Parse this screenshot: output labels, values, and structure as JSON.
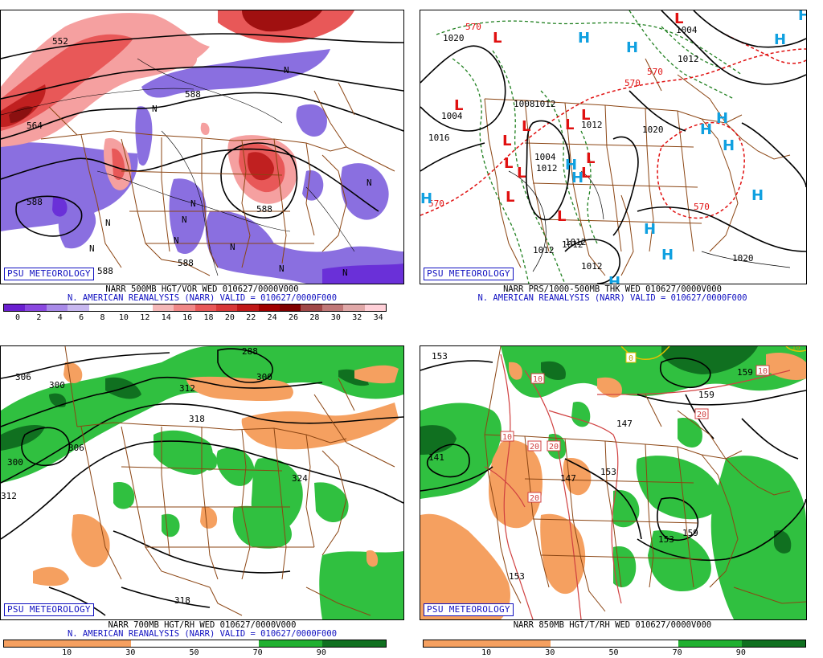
{
  "panels": {
    "p1": {
      "logo": "PSU METEOROLOGY",
      "line1": "NARR 500MB HGT/VOR WED 010627/0000V000",
      "line2": "N. AMERICAN REANALYSIS (NARR) VALID = 010627/0000F000",
      "colorbar_ticks": [
        "0",
        "2",
        "4",
        "6",
        "8",
        "10",
        "12",
        "14",
        "16",
        "18",
        "20",
        "22",
        "24",
        "26",
        "28",
        "30",
        "32",
        "34"
      ],
      "colorbar_colors": [
        "#6a1fd0",
        "#8a48e0",
        "#a88ae8",
        "#c8b8f0",
        "#ffffff",
        "#ffffff",
        "#ffffff",
        "#f5b8b8",
        "#f08888",
        "#e85858",
        "#d83838",
        "#c01818",
        "#a00000",
        "#800000",
        "#a04848",
        "#c07878",
        "#e0a8a8",
        "#ffd0d8"
      ],
      "contour_labels": [
        "552",
        "564",
        "588",
        "588",
        "588",
        "588",
        "588",
        "N",
        "N",
        "N",
        "N",
        "N",
        "N",
        "N",
        "N",
        "N",
        "N",
        "N"
      ]
    },
    "p2": {
      "logo": "PSU METEOROLOGY",
      "line1": "NARR PRS/1000-500MB THK WED 010627/0000V000",
      "line2": "N. AMERICAN REANALYSIS (NARR) VALID = 010627/0000F000",
      "pressure_labels": [
        "1020",
        "1004",
        "1008",
        "1012",
        "1012",
        "1012",
        "1012",
        "1012",
        "1012",
        "1016",
        "1020",
        "1020",
        "1004",
        "1012",
        "1012",
        "1004"
      ],
      "thickness_labels": [
        "570",
        "570",
        "570",
        "570",
        "570"
      ],
      "L": "L",
      "H": "H"
    },
    "p3": {
      "logo": "PSU METEOROLOGY",
      "line1": "NARR 700MB HGT/RH WED 010627/0000V000",
      "line2": "N. AMERICAN REANALYSIS (NARR) VALID = 010627/0000F000",
      "colorbar_ticks": [
        "10",
        "30",
        "50",
        "70",
        "90"
      ],
      "contour_labels": [
        "306",
        "300",
        "300",
        "312",
        "312",
        "318",
        "324",
        "318",
        "288",
        "300",
        "306"
      ]
    },
    "p4": {
      "logo": "PSU METEOROLOGY",
      "line1": "NARR 850MB HGT/T/RH WED 010627/0000V000",
      "colorbar_ticks": [
        "10",
        "30",
        "50",
        "70",
        "90"
      ],
      "height_labels": [
        "153",
        "141",
        "147",
        "153",
        "159",
        "153",
        "159",
        "159",
        "153",
        "147"
      ],
      "temp_boxes": [
        "10",
        "10",
        "10",
        "20",
        "20",
        "20",
        "20",
        "0",
        "10"
      ]
    }
  },
  "colors": {
    "state_lines": "#8b4513",
    "contour": "#000000",
    "low": "#e01010",
    "high": "#10a0e0",
    "thickness_warm": "#e01010",
    "thickness_cool": "#208020",
    "rh_dry": "#f5a060",
    "rh_moist": "#20b030",
    "rh_very_moist": "#107020",
    "caption_blue": "#1010c0"
  }
}
